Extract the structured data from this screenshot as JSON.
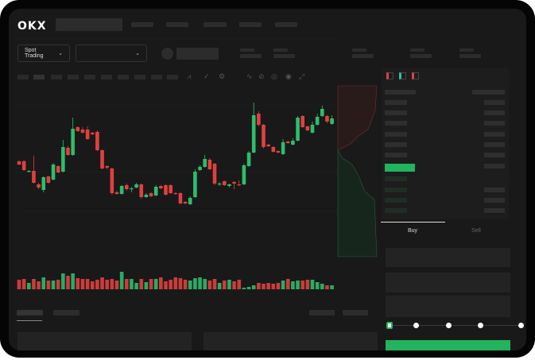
{
  "header": {
    "logo": "OKX"
  },
  "toolbar": {
    "market_selector": "Spot Trading"
  },
  "trade": {
    "buy_tab": "Buy",
    "sell_tab": "Sell",
    "slider_percent": 0
  },
  "colors": {
    "up": "#2ebd6b",
    "down": "#e0403f",
    "accent": "#22b45d",
    "background": "#191919"
  },
  "chart_data": {
    "type": "candlestick",
    "candles": [
      [
        97,
        93,
        98,
        92
      ],
      [
        97,
        86,
        99,
        85
      ],
      [
        84,
        85,
        86,
        83
      ],
      [
        85,
        70,
        104,
        69
      ],
      [
        68,
        64,
        70,
        62
      ],
      [
        61,
        77,
        78,
        58
      ],
      [
        78,
        70,
        79,
        69
      ],
      [
        74,
        93,
        95,
        73
      ],
      [
        91,
        83,
        92,
        82
      ],
      [
        84,
        115,
        124,
        83
      ],
      [
        114,
        105,
        116,
        104
      ],
      [
        105,
        138,
        152,
        104
      ],
      [
        140,
        135,
        141,
        134
      ],
      [
        137,
        133,
        140,
        132
      ],
      [
        137,
        125,
        141,
        124
      ],
      [
        133,
        131,
        134,
        130
      ],
      [
        134,
        111,
        136,
        110
      ],
      [
        111,
        88,
        112,
        87
      ],
      [
        91,
        89,
        92,
        87
      ],
      [
        88,
        57,
        89,
        55
      ],
      [
        58,
        56,
        60,
        55
      ],
      [
        56,
        66,
        67,
        55
      ],
      [
        67,
        62,
        69,
        60
      ],
      [
        62,
        63,
        65,
        58
      ],
      [
        64,
        68,
        70,
        63
      ],
      [
        68,
        52,
        69,
        50
      ],
      [
        52,
        55,
        57,
        51
      ],
      [
        57,
        53,
        58,
        52
      ],
      [
        54,
        65,
        67,
        53
      ],
      [
        66,
        63,
        67,
        62
      ],
      [
        67,
        55,
        68,
        54
      ],
      [
        67,
        57,
        68,
        56
      ],
      [
        57,
        56,
        58,
        55
      ],
      [
        57,
        44,
        58,
        43
      ],
      [
        46,
        44,
        47,
        43
      ],
      [
        43,
        51,
        53,
        42
      ],
      [
        52,
        84,
        87,
        51
      ],
      [
        86,
        90,
        92,
        85
      ],
      [
        90,
        100,
        105,
        89
      ],
      [
        99,
        87,
        101,
        86
      ],
      [
        94,
        69,
        95,
        67
      ],
      [
        68,
        69,
        71,
        66
      ],
      [
        72,
        67,
        73,
        66
      ],
      [
        66,
        68,
        69,
        64
      ],
      [
        71,
        69,
        72,
        62
      ],
      [
        68,
        67,
        73,
        66
      ],
      [
        68,
        92,
        94,
        67
      ],
      [
        91,
        108,
        110,
        90
      ],
      [
        108,
        155,
        171,
        107
      ],
      [
        157,
        143,
        160,
        141
      ],
      [
        143,
        115,
        144,
        113
      ],
      [
        118,
        116,
        119,
        115
      ],
      [
        115,
        109,
        116,
        108
      ],
      [
        110,
        108,
        111,
        107
      ],
      [
        106,
        121,
        125,
        105
      ],
      [
        122,
        120,
        123,
        119
      ],
      [
        118,
        123,
        126,
        117
      ],
      [
        123,
        152,
        154,
        122
      ],
      [
        154,
        140,
        155,
        139
      ],
      [
        141,
        136,
        142,
        135
      ],
      [
        133,
        143,
        147,
        132
      ],
      [
        143,
        153,
        157,
        142
      ],
      [
        154,
        163,
        167,
        153
      ],
      [
        154,
        147,
        155,
        145
      ],
      [
        144,
        151,
        155,
        143
      ]
    ],
    "volumes": [
      12,
      13,
      8,
      13,
      10,
      15,
      11,
      11,
      12,
      20,
      17,
      20,
      14,
      13,
      13,
      10,
      12,
      15,
      12,
      13,
      11,
      22,
      13,
      13,
      8,
      13,
      9,
      13,
      13,
      15,
      10,
      12,
      15,
      14,
      12,
      11,
      14,
      15,
      13,
      11,
      13,
      8,
      11,
      12,
      10,
      12,
      2,
      3,
      5,
      8,
      7,
      8,
      7,
      8,
      11,
      13,
      10,
      11,
      11,
      12,
      12,
      9,
      7,
      5,
      5
    ]
  }
}
